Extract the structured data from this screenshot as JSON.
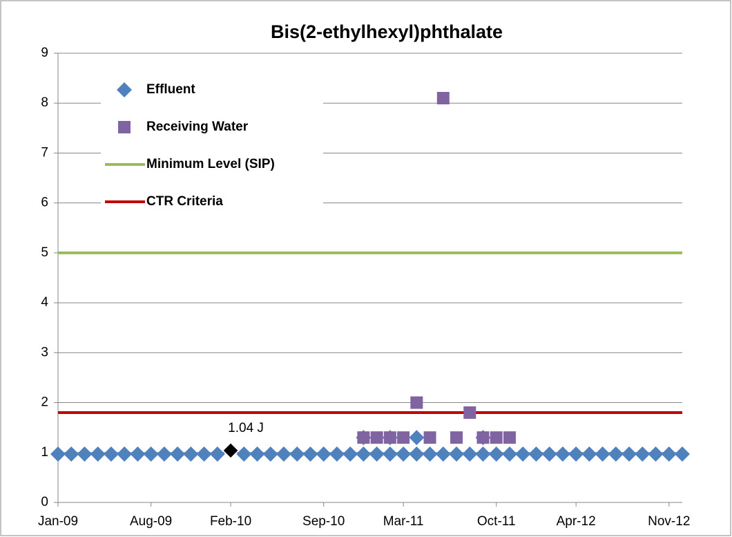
{
  "chart_data": {
    "type": "scatter",
    "title": "Bis(2-ethylhexyl)phthalate",
    "xlim": [
      "2009-01",
      "2012-12"
    ],
    "xticks": [
      {
        "value": "2009-01",
        "label": "Jan-09"
      },
      {
        "value": "2009-08",
        "label": "Aug-09"
      },
      {
        "value": "2010-02",
        "label": "Feb-10"
      },
      {
        "value": "2010-09",
        "label": "Sep-10"
      },
      {
        "value": "2011-03",
        "label": "Mar-11"
      },
      {
        "value": "2011-10",
        "label": "Oct-11"
      },
      {
        "value": "2012-04",
        "label": "Apr-12"
      },
      {
        "value": "2012-11",
        "label": "Nov-12"
      }
    ],
    "ylim": [
      0,
      9
    ],
    "yticks": [
      0,
      1,
      2,
      3,
      4,
      5,
      6,
      7,
      8,
      9
    ],
    "grid": true,
    "legend": "upper left",
    "series": [
      {
        "name": "Effluent",
        "color": "#4f81bd",
        "marker": "diamond",
        "x": [
          "2009-01",
          "2009-02",
          "2009-03",
          "2009-04",
          "2009-05",
          "2009-06",
          "2009-07",
          "2009-08",
          "2009-09",
          "2009-10",
          "2009-11",
          "2009-12",
          "2010-01",
          "2010-03",
          "2010-04",
          "2010-05",
          "2010-06",
          "2010-07",
          "2010-08",
          "2010-09",
          "2010-10",
          "2010-11",
          "2010-12",
          "2010-12",
          "2011-01",
          "2011-02",
          "2011-02",
          "2011-03",
          "2011-04",
          "2011-04",
          "2011-05",
          "2011-06",
          "2011-07",
          "2011-08",
          "2011-09",
          "2011-09",
          "2011-10",
          "2011-11",
          "2011-12",
          "2012-01",
          "2012-02",
          "2012-03",
          "2012-04",
          "2012-05",
          "2012-06",
          "2012-07",
          "2012-08",
          "2012-09",
          "2012-10",
          "2012-11",
          "2012-12"
        ],
        "values": [
          0.97,
          0.97,
          0.97,
          0.97,
          0.97,
          0.97,
          0.97,
          0.97,
          0.97,
          0.97,
          0.97,
          0.97,
          0.97,
          0.97,
          0.97,
          0.97,
          0.97,
          0.97,
          0.97,
          0.97,
          0.97,
          0.97,
          0.97,
          1.3,
          0.97,
          0.97,
          1.3,
          0.97,
          0.97,
          1.3,
          0.97,
          0.97,
          0.97,
          0.97,
          0.97,
          1.3,
          0.97,
          0.97,
          0.97,
          0.97,
          0.97,
          0.97,
          0.97,
          0.97,
          0.97,
          0.97,
          0.97,
          0.97,
          0.97,
          0.97,
          0.97
        ]
      },
      {
        "name": "Receiving Water",
        "color": "#8064a2",
        "marker": "square",
        "x": [
          "2010-12",
          "2011-01",
          "2011-02",
          "2011-03",
          "2011-04",
          "2011-05",
          "2011-06",
          "2011-07",
          "2011-08",
          "2011-09",
          "2011-10",
          "2011-11"
        ],
        "values": [
          1.3,
          1.3,
          1.3,
          1.3,
          2.0,
          1.3,
          8.1,
          1.3,
          1.8,
          1.3,
          1.3,
          1.3
        ]
      }
    ],
    "reference_lines": [
      {
        "name": "Minimum Level (SIP)",
        "color": "#9bbb59",
        "value": 5
      },
      {
        "name": "CTR Criteria",
        "color": "#c00000",
        "value": 1.8
      }
    ],
    "annotations": [
      {
        "text": "1.04 J",
        "x": "2010-02",
        "y": 1.04,
        "color": "#000000"
      }
    ]
  }
}
